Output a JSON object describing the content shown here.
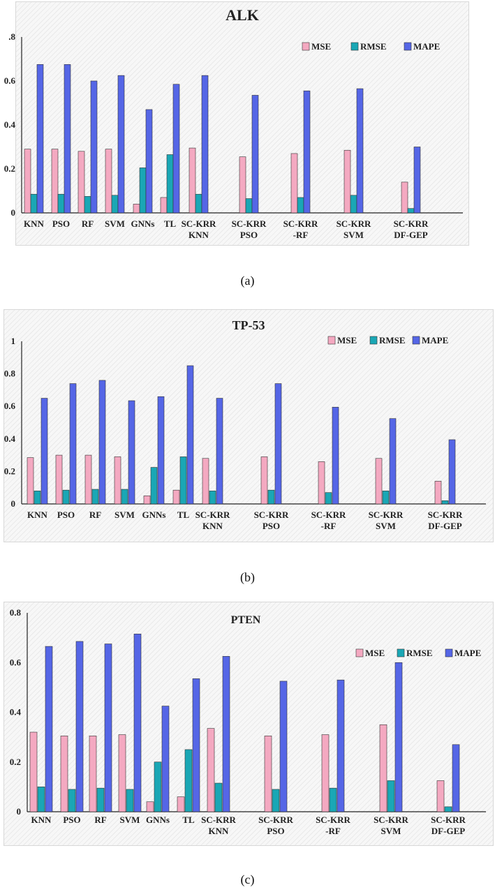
{
  "chart_data": [
    {
      "type": "bar",
      "title": "ALK",
      "caption": "(a)",
      "categories": [
        "KNN",
        "PSO",
        "RF",
        "SVM",
        "GNNs",
        "TL",
        "SC-KRR\nKNN",
        "SC-KRR\nPSO",
        "SC-KRR\n-RF",
        "SC-KRR\nSVM",
        "SC-KRR\nDF-GEP"
      ],
      "series": [
        {
          "name": "MSE",
          "values": [
            0.29,
            0.29,
            0.28,
            0.29,
            0.04,
            0.07,
            0.295,
            0.255,
            0.27,
            0.285,
            0.14
          ]
        },
        {
          "name": "RMSE",
          "values": [
            0.085,
            0.085,
            0.075,
            0.08,
            0.205,
            0.265,
            0.085,
            0.065,
            0.07,
            0.08,
            0.02
          ]
        },
        {
          "name": "MAPE",
          "values": [
            0.675,
            0.675,
            0.6,
            0.625,
            0.47,
            0.585,
            0.625,
            0.535,
            0.555,
            0.565,
            0.3
          ]
        }
      ],
      "yticks": [
        "0",
        "0.2",
        "0.4",
        "0.6",
        ".8"
      ],
      "ylim": [
        0,
        0.8
      ],
      "xlabel": "",
      "ylabel": "",
      "legend": "top-right",
      "grid": false
    },
    {
      "type": "bar",
      "title": "TP-53",
      "caption": "(b)",
      "categories": [
        "KNN",
        "PSO",
        "RF",
        "SVM",
        "GNNs",
        "TL",
        "SC-KRR\nKNN",
        "SC-KRR\nPSO",
        "SC-KRR\n-RF",
        "SC-KRR\nSVM",
        "SC-KRR\nDF-GEP"
      ],
      "series": [
        {
          "name": "MSE",
          "values": [
            0.285,
            0.3,
            0.3,
            0.29,
            0.05,
            0.085,
            0.28,
            0.29,
            0.26,
            0.28,
            0.14
          ]
        },
        {
          "name": "RMSE",
          "values": [
            0.08,
            0.085,
            0.09,
            0.09,
            0.225,
            0.29,
            0.08,
            0.085,
            0.07,
            0.08,
            0.02
          ]
        },
        {
          "name": "MAPE",
          "values": [
            0.65,
            0.74,
            0.76,
            0.635,
            0.66,
            0.85,
            0.65,
            0.74,
            0.595,
            0.525,
            0.395
          ]
        }
      ],
      "yticks": [
        "0",
        "0.2",
        "0.4",
        "0.6",
        "0.8",
        "1"
      ],
      "ylim": [
        0,
        1
      ],
      "xlabel": "",
      "ylabel": "",
      "legend": "top-right",
      "grid": false
    },
    {
      "type": "bar",
      "title": "PTEN",
      "caption": "(c)",
      "categories": [
        "KNN",
        "PSO",
        "RF",
        "SVM",
        "GNNs",
        "TL",
        "SC-KRR\nKNN",
        "SC-KRR\nPSO",
        "SC-KRR\n-RF",
        "SC-KRR\nSVM",
        "SC-KRR\nDF-GEP"
      ],
      "series": [
        {
          "name": "MSE",
          "values": [
            0.32,
            0.305,
            0.305,
            0.31,
            0.04,
            0.06,
            0.335,
            0.305,
            0.31,
            0.35,
            0.125
          ]
        },
        {
          "name": "RMSE",
          "values": [
            0.1,
            0.09,
            0.095,
            0.09,
            0.2,
            0.25,
            0.115,
            0.09,
            0.095,
            0.125,
            0.02
          ]
        },
        {
          "name": "MAPE",
          "values": [
            0.665,
            0.685,
            0.675,
            0.715,
            0.425,
            0.535,
            0.625,
            0.525,
            0.53,
            0.6,
            0.27
          ]
        }
      ],
      "yticks": [
        "0",
        "0.2",
        "0.4",
        "0.6",
        "0.8"
      ],
      "ylim": [
        0,
        0.8
      ],
      "xlabel": "",
      "ylabel": "",
      "legend": "top-right",
      "grid": false
    }
  ],
  "colors": {
    "MSE": "#f4a9c1",
    "RMSE": "#1aa7b5",
    "MAPE": "#5566e6",
    "axis": "#222222"
  }
}
